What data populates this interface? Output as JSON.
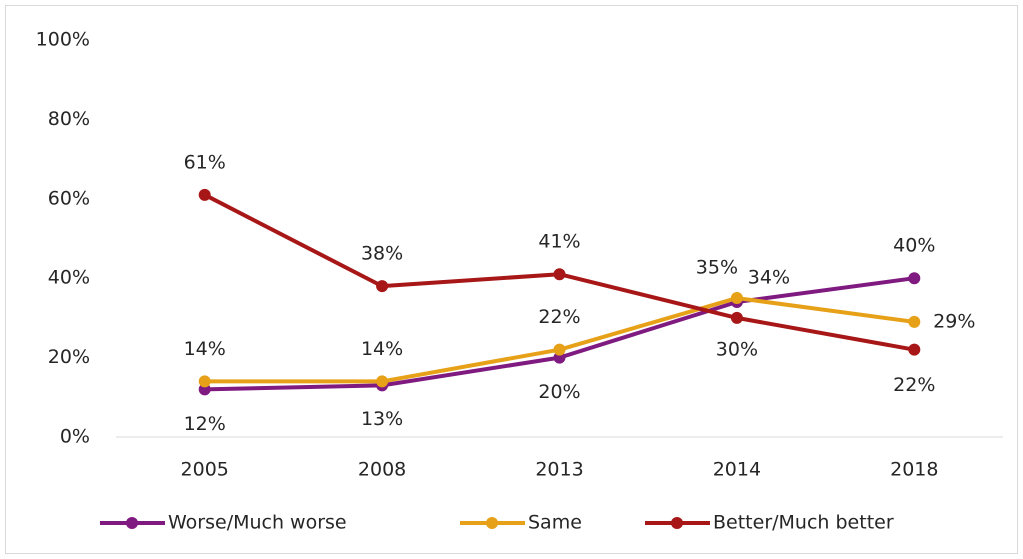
{
  "chart_data": {
    "type": "line",
    "categories": [
      "2005",
      "2008",
      "2013",
      "2014",
      "2018"
    ],
    "series": [
      {
        "name": "Worse/Much worse",
        "color": "#7f1a80",
        "values": [
          12,
          13,
          20,
          34,
          40
        ],
        "value_labels": [
          "12%",
          "13%",
          "20%",
          "34%",
          "40%"
        ]
      },
      {
        "name": "Same",
        "color": "#e6a118",
        "values": [
          14,
          14,
          22,
          35,
          29
        ],
        "value_labels": [
          "14%",
          "14%",
          "22%",
          "35%",
          "29%"
        ]
      },
      {
        "name": "Better/Much better",
        "color": "#a81717",
        "values": [
          61,
          38,
          41,
          30,
          22
        ],
        "value_labels": [
          "61%",
          "38%",
          "41%",
          "30%",
          "22%"
        ]
      }
    ],
    "ylim": [
      0,
      100
    ],
    "yticks": [
      {
        "value": 0,
        "label": "0%"
      },
      {
        "value": 20,
        "label": "20%"
      },
      {
        "value": 40,
        "label": "40%"
      },
      {
        "value": 60,
        "label": "60%"
      },
      {
        "value": 80,
        "label": "80%"
      },
      {
        "value": 100,
        "label": "100%"
      }
    ],
    "grid": false,
    "legend": "bottom"
  }
}
